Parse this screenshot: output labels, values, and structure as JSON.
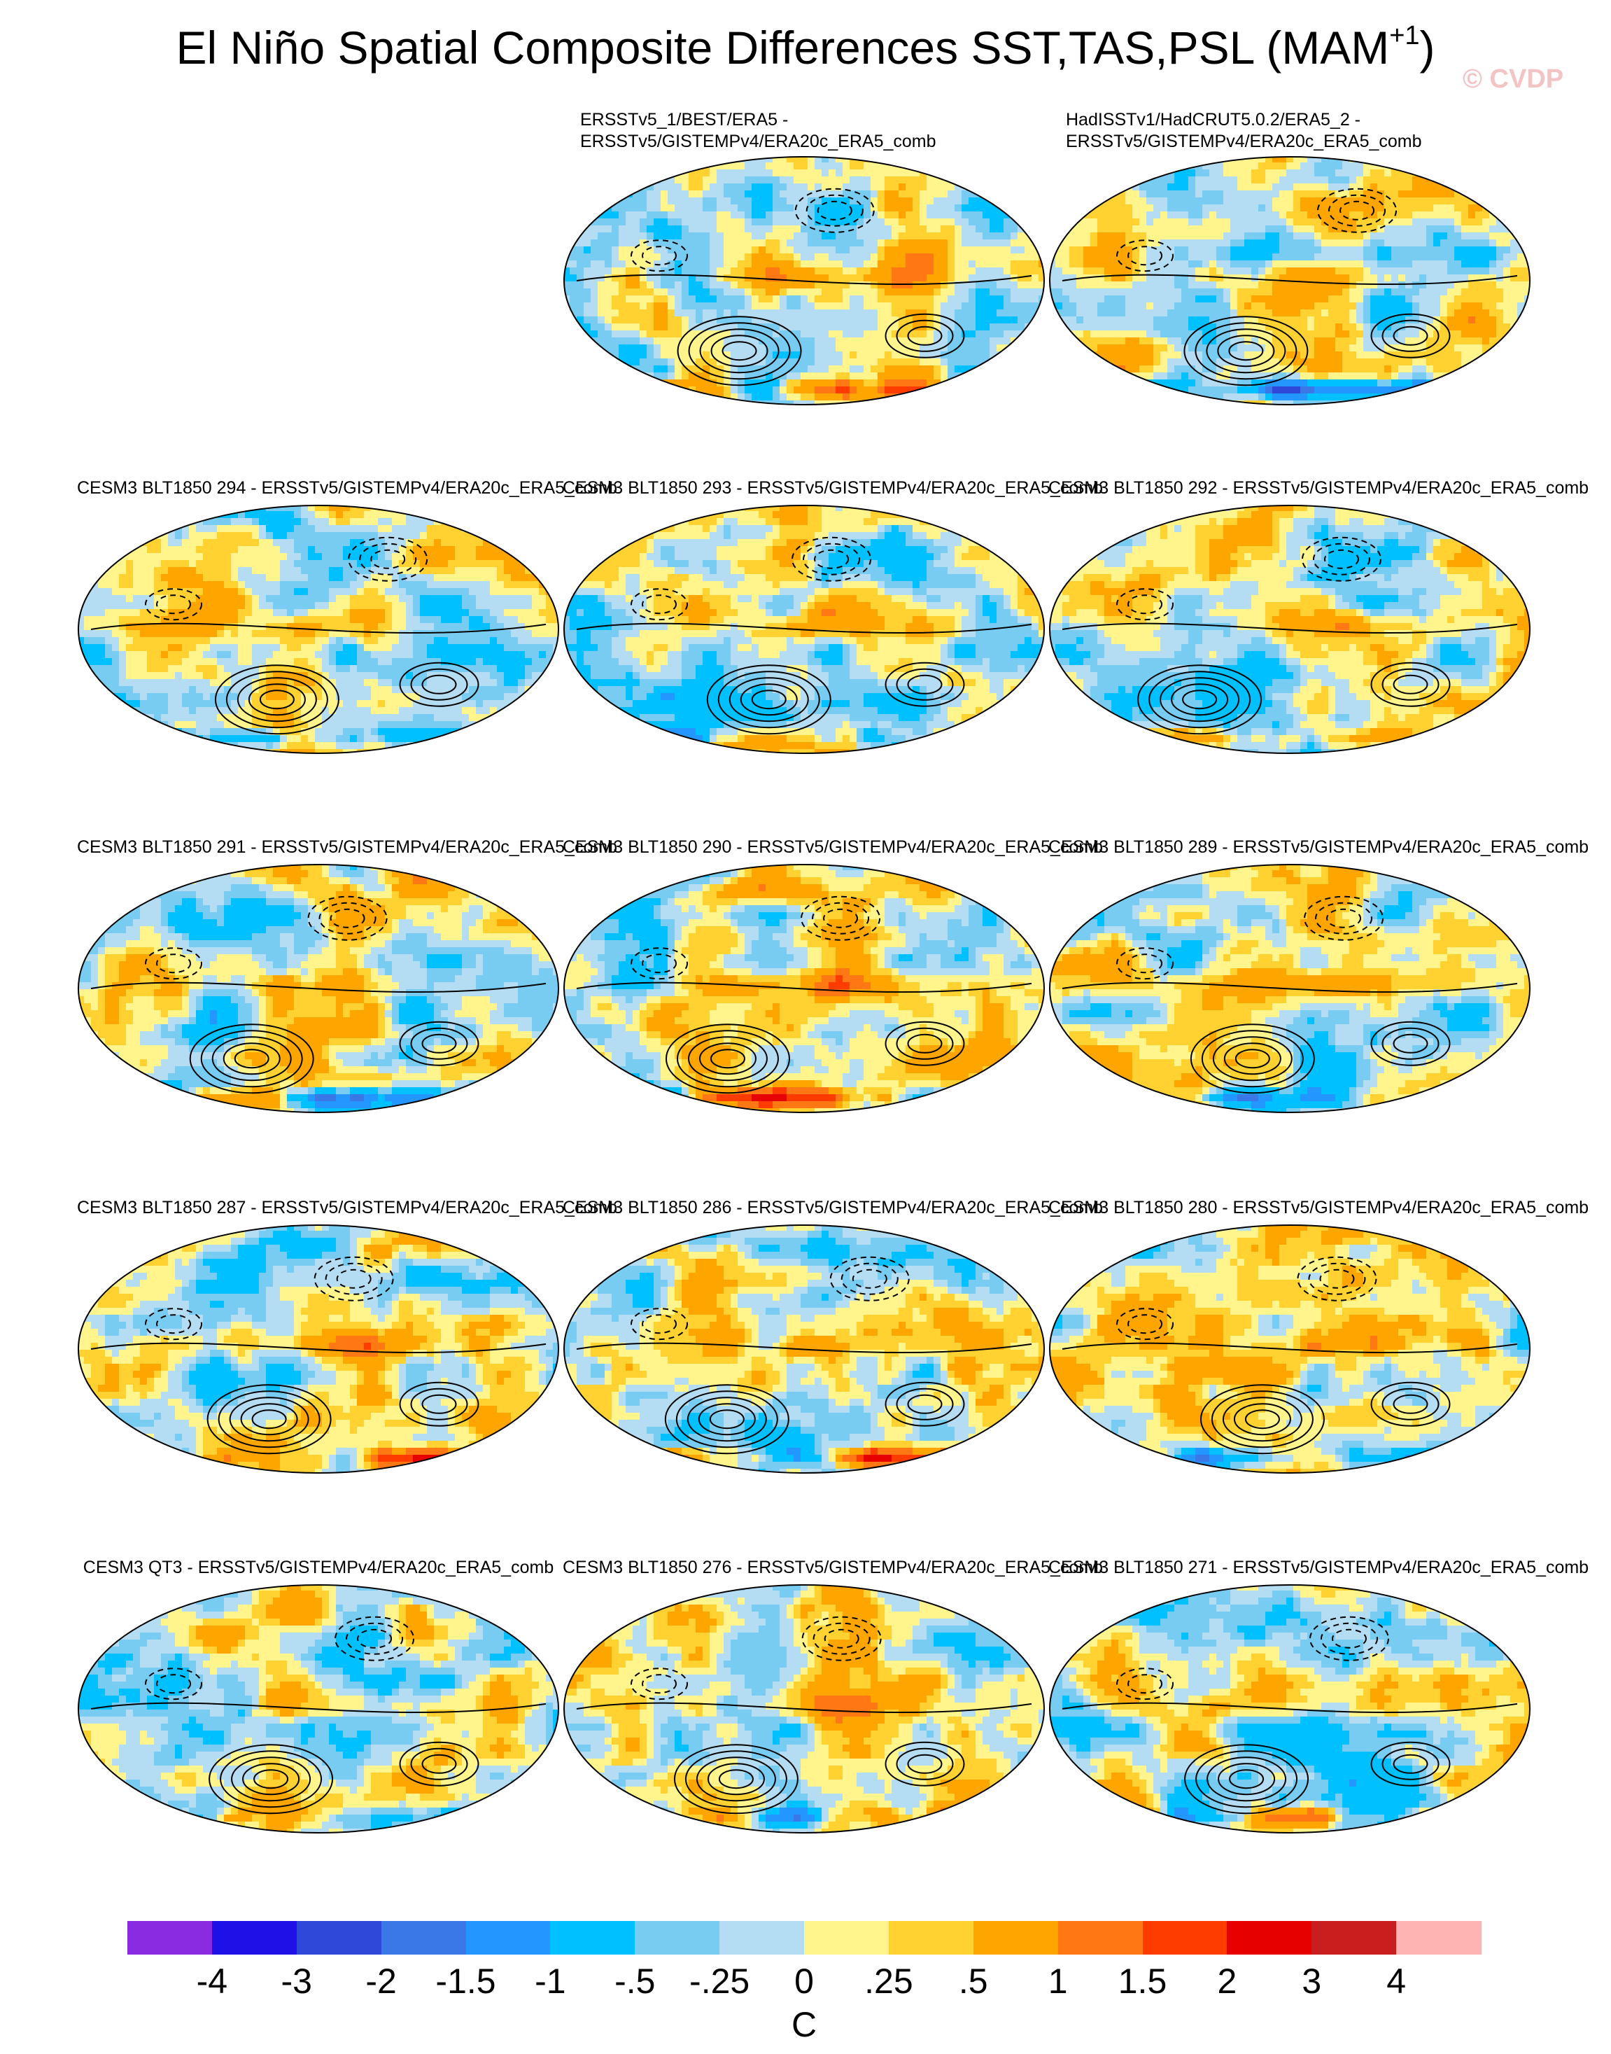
{
  "title_main": "El Niño Spatial Composite Differences SST,TAS,PSL (MAM",
  "title_sup": "+1",
  "title_end": ")",
  "watermark": "© CVDP",
  "chart_data": {
    "type": "heatmap",
    "projection": "Robinson (global)",
    "variables": [
      "SST",
      "TAS",
      "PSL"
    ],
    "season": "MAM+1",
    "shading": "SST/TAS composite difference (colour-filled)",
    "contours": "PSL composite difference (solid = positive, dashed = negative)",
    "colorbar": {
      "units": "C",
      "levels": [
        "-4",
        "-3",
        "-2",
        "-1.5",
        "-1",
        "-.5",
        "-.25",
        "0",
        ".25",
        ".5",
        "1",
        "1.5",
        "2",
        "3",
        "4"
      ],
      "colors": [
        "#8a2be2",
        "#1e10e6",
        "#3048d8",
        "#3a78e8",
        "#2496ff",
        "#00c0ff",
        "#78ccf2",
        "#b4dcf2",
        "#fff58c",
        "#ffd232",
        "#ffa500",
        "#ff7814",
        "#ff3c00",
        "#e60000",
        "#c81e1e",
        "#ffb4b4"
      ]
    },
    "panels": [
      {
        "row": 0,
        "col": 1,
        "title": [
          "ERSSTv5_1/BEST/ERA5 -",
          "ERSSTv5/GISTEMPv4/ERA20c_ERA5_comb"
        ]
      },
      {
        "row": 0,
        "col": 2,
        "title": [
          "HadISSTv1/HadCRUT5.0.2/ERA5_2 -",
          "ERSSTv5/GISTEMPv4/ERA20c_ERA5_comb"
        ]
      },
      {
        "row": 1,
        "col": 0,
        "title": [
          "CESM3 BLT1850 294 - ERSSTv5/GISTEMPv4/ERA20c_ERA5_comb"
        ]
      },
      {
        "row": 1,
        "col": 1,
        "title": [
          "CESM3 BLT1850 293 - ERSSTv5/GISTEMPv4/ERA20c_ERA5_comb"
        ]
      },
      {
        "row": 1,
        "col": 2,
        "title": [
          "CESM3 BLT1850 292 - ERSSTv5/GISTEMPv4/ERA20c_ERA5_comb"
        ]
      },
      {
        "row": 2,
        "col": 0,
        "title": [
          "CESM3 BLT1850 291 - ERSSTv5/GISTEMPv4/ERA20c_ERA5_comb"
        ]
      },
      {
        "row": 2,
        "col": 1,
        "title": [
          "CESM3 BLT1850 290 - ERSSTv5/GISTEMPv4/ERA20c_ERA5_comb"
        ]
      },
      {
        "row": 2,
        "col": 2,
        "title": [
          "CESM3 BLT1850 289 - ERSSTv5/GISTEMPv4/ERA20c_ERA5_comb"
        ]
      },
      {
        "row": 3,
        "col": 0,
        "title": [
          "CESM3 BLT1850 287 - ERSSTv5/GISTEMPv4/ERA20c_ERA5_comb"
        ]
      },
      {
        "row": 3,
        "col": 1,
        "title": [
          "CESM3 BLT1850 286 - ERSSTv5/GISTEMPv4/ERA20c_ERA5_comb"
        ]
      },
      {
        "row": 3,
        "col": 2,
        "title": [
          "CESM3 BLT1850 280 - ERSSTv5/GISTEMPv4/ERA20c_ERA5_comb"
        ]
      },
      {
        "row": 4,
        "col": 0,
        "title": [
          "CESM3 QT3 - ERSSTv5/GISTEMPv4/ERA20c_ERA5_comb"
        ]
      },
      {
        "row": 4,
        "col": 1,
        "title": [
          "CESM3 BLT1850 276 - ERSSTv5/GISTEMPv4/ERA20c_ERA5_comb"
        ]
      },
      {
        "row": 4,
        "col": 2,
        "title": [
          "CESM3 BLT1850 271 - ERSSTv5/GISTEMPv4/ERA20c_ERA5_comb"
        ]
      }
    ]
  }
}
